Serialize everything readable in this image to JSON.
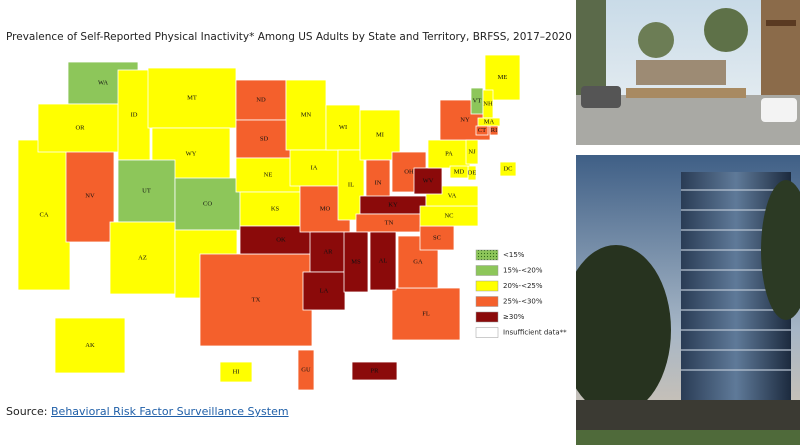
{
  "header": {
    "title": "Prevalence of Self-Reported Physical Inactivity* Among US Adults by State and Territory, BRFSS, 2017–2020"
  },
  "legend": [
    {
      "label": "<15%",
      "color": "#8dc65a",
      "pattern": "dotted"
    },
    {
      "label": "15%-<20%",
      "color": "#8dc65a"
    },
    {
      "label": "20%-<25%",
      "color": "#ffff00"
    },
    {
      "label": "25%-<30%",
      "color": "#f4602c"
    },
    {
      "label": "≥30%",
      "color": "#8b0a0a"
    },
    {
      "label": "Insufficient data**",
      "color": "#ffffff"
    }
  ],
  "states": [
    {
      "abbr": "CA",
      "class": 2
    },
    {
      "abbr": "NV",
      "class": 3
    },
    {
      "abbr": "WA",
      "class": 1
    },
    {
      "abbr": "OR",
      "class": 2
    },
    {
      "abbr": "ID",
      "class": 2
    },
    {
      "abbr": "MT",
      "class": 2
    },
    {
      "abbr": "WY",
      "class": 2
    },
    {
      "abbr": "UT",
      "class": 1
    },
    {
      "abbr": "CO",
      "class": 1
    },
    {
      "abbr": "AZ",
      "class": 2
    },
    {
      "abbr": "NM",
      "class": 2
    },
    {
      "abbr": "ND",
      "class": 3
    },
    {
      "abbr": "SD",
      "class": 3
    },
    {
      "abbr": "NE",
      "class": 2
    },
    {
      "abbr": "KS",
      "class": 2
    },
    {
      "abbr": "TX",
      "class": 3
    },
    {
      "abbr": "OK",
      "class": 4
    },
    {
      "abbr": "MN",
      "class": 2
    },
    {
      "abbr": "IA",
      "class": 2
    },
    {
      "abbr": "MO",
      "class": 3
    },
    {
      "abbr": "AR",
      "class": 4
    },
    {
      "abbr": "LA",
      "class": 4
    },
    {
      "abbr": "WI",
      "class": 2
    },
    {
      "abbr": "IL",
      "class": 2
    },
    {
      "abbr": "MI",
      "class": 2
    },
    {
      "abbr": "IN",
      "class": 3
    },
    {
      "abbr": "OH",
      "class": 3
    },
    {
      "abbr": "FL",
      "class": 3
    },
    {
      "abbr": "KY",
      "class": 4
    },
    {
      "abbr": "TN",
      "class": 3
    },
    {
      "abbr": "MS",
      "class": 4
    },
    {
      "abbr": "AL",
      "class": 4
    },
    {
      "abbr": "GA",
      "class": 3
    },
    {
      "abbr": "SC",
      "class": 3
    },
    {
      "abbr": "NC",
      "class": 2
    },
    {
      "abbr": "VA",
      "class": 2
    },
    {
      "abbr": "WV",
      "class": 4
    },
    {
      "abbr": "PA",
      "class": 2
    },
    {
      "abbr": "NY",
      "class": 3
    },
    {
      "abbr": "ME",
      "class": 2
    },
    {
      "abbr": "VT",
      "class": 1
    },
    {
      "abbr": "NH",
      "class": 2
    },
    {
      "abbr": "MA",
      "class": 2
    },
    {
      "abbr": "CT",
      "class": 3
    },
    {
      "abbr": "RI",
      "class": 3
    },
    {
      "abbr": "NJ",
      "class": 2
    },
    {
      "abbr": "DE",
      "class": 2
    },
    {
      "abbr": "MD",
      "class": 2
    },
    {
      "abbr": "DC",
      "class": 2
    },
    {
      "abbr": "AK",
      "class": 2
    },
    {
      "abbr": "HI",
      "class": 2
    },
    {
      "abbr": "GU",
      "class": 3
    },
    {
      "abbr": "PR",
      "class": 4
    }
  ],
  "source": {
    "prefix": "Source:",
    "link": "Behavioral Risk Factor Surveillance System"
  }
}
